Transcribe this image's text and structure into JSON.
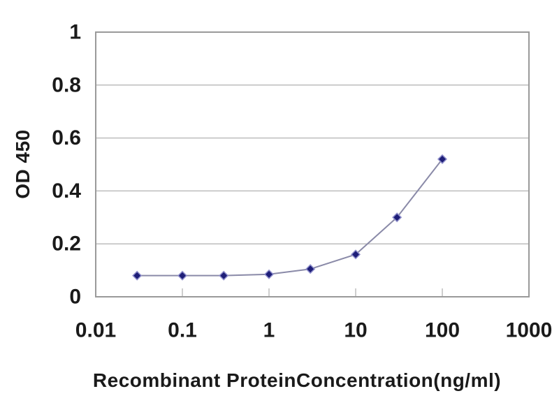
{
  "chart_data": {
    "type": "line",
    "title": "",
    "xlabel": "Recombinant ProteinConcentration(ng/ml)",
    "ylabel": "OD 450",
    "x_scale": "log",
    "y_scale": "linear",
    "xlim": [
      0.01,
      1000
    ],
    "ylim": [
      0,
      1
    ],
    "x_ticks": [
      0.01,
      0.1,
      1,
      10,
      100,
      1000
    ],
    "x_tick_labels": [
      "0.01",
      "0.1",
      "1",
      "10",
      "100",
      "1000"
    ],
    "y_ticks": [
      0,
      0.2,
      0.4,
      0.6,
      0.8,
      1
    ],
    "y_tick_labels": [
      "0",
      "0.2",
      "0.4",
      "0.6",
      "0.8",
      "1"
    ],
    "grid": "horizontal",
    "legend": "none",
    "marker_shape": "diamond",
    "x": [
      0.03,
      0.1,
      0.3,
      1,
      3,
      10,
      30,
      100
    ],
    "series": [
      {
        "name": "OD 450",
        "values": [
          0.08,
          0.08,
          0.08,
          0.085,
          0.105,
          0.16,
          0.3,
          0.52
        ]
      }
    ],
    "colors": {
      "marker": "#1e1e78",
      "marker_halo": "#9090cc",
      "line": "#8a8aa8",
      "grid": "#bdbdbd",
      "axis_border": "#9a9a9a",
      "tick": "#bdbdbd",
      "text": "#1a1a1a",
      "background": "#ffffff"
    }
  }
}
